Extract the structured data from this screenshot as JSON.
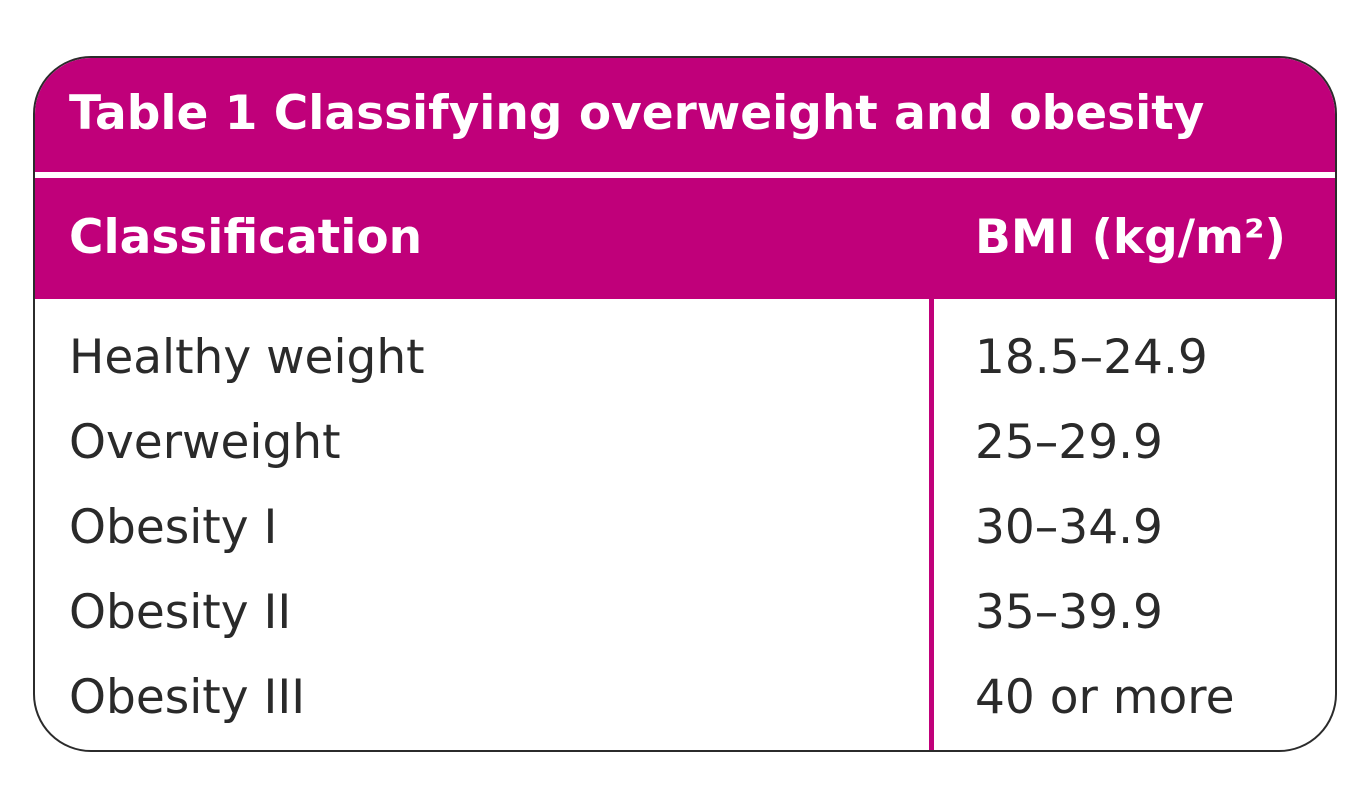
{
  "table": {
    "title": "Table 1 Classifying overweight and obesity",
    "columns": {
      "classification": "Classification",
      "bmi": "BMI (kg/m²)"
    },
    "rows": [
      {
        "classification": "Healthy weight",
        "bmi": "18.5–24.9"
      },
      {
        "classification": "Overweight",
        "bmi": "25–29.9"
      },
      {
        "classification": "Obesity I",
        "bmi": "30–34.9"
      },
      {
        "classification": "Obesity II",
        "bmi": "35–39.9"
      },
      {
        "classification": "Obesity III",
        "bmi": "40 or more"
      }
    ]
  },
  "colors": {
    "accent": "#c0007a",
    "border": "#2b2b2b",
    "text": "#2a2a2a"
  }
}
